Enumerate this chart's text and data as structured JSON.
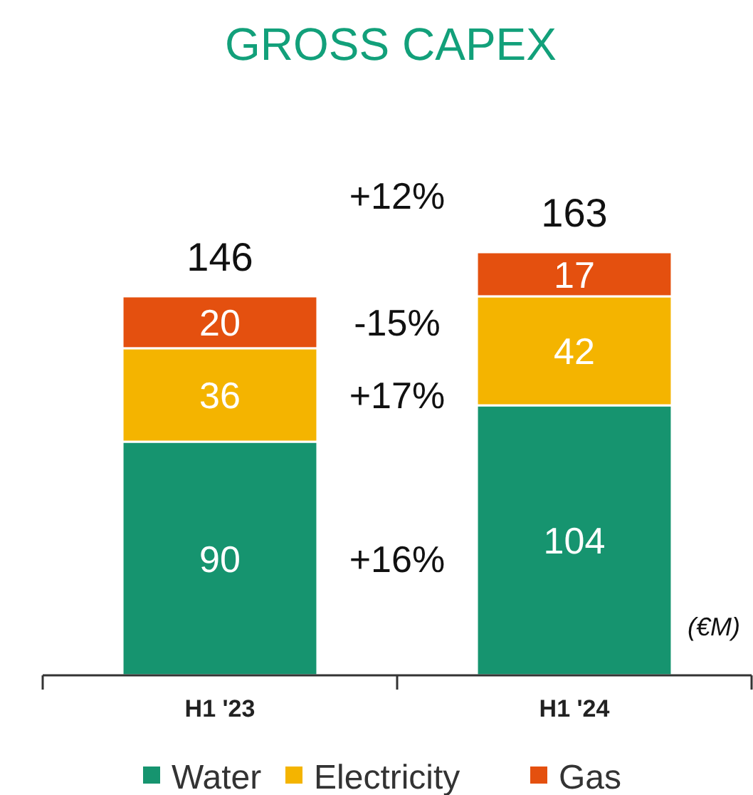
{
  "chart_data": {
    "type": "bar",
    "title": "GROSS CAPEX",
    "categories": [
      "H1 '23",
      "H1 '24"
    ],
    "stacked": true,
    "data_labels": true,
    "legend": "bottom",
    "series": [
      {
        "name": "Water",
        "color": "#16946f",
        "values": [
          90,
          104
        ]
      },
      {
        "name": "Electricity",
        "color": "#f4b400",
        "values": [
          36,
          42
        ]
      },
      {
        "name": "Gas",
        "color": "#e4500f",
        "values": [
          20,
          17
        ]
      }
    ],
    "totals": [
      "146",
      "163"
    ],
    "annotations": [
      "+12%",
      "-15%",
      "+17%",
      "+16%",
      "(€M)"
    ]
  }
}
